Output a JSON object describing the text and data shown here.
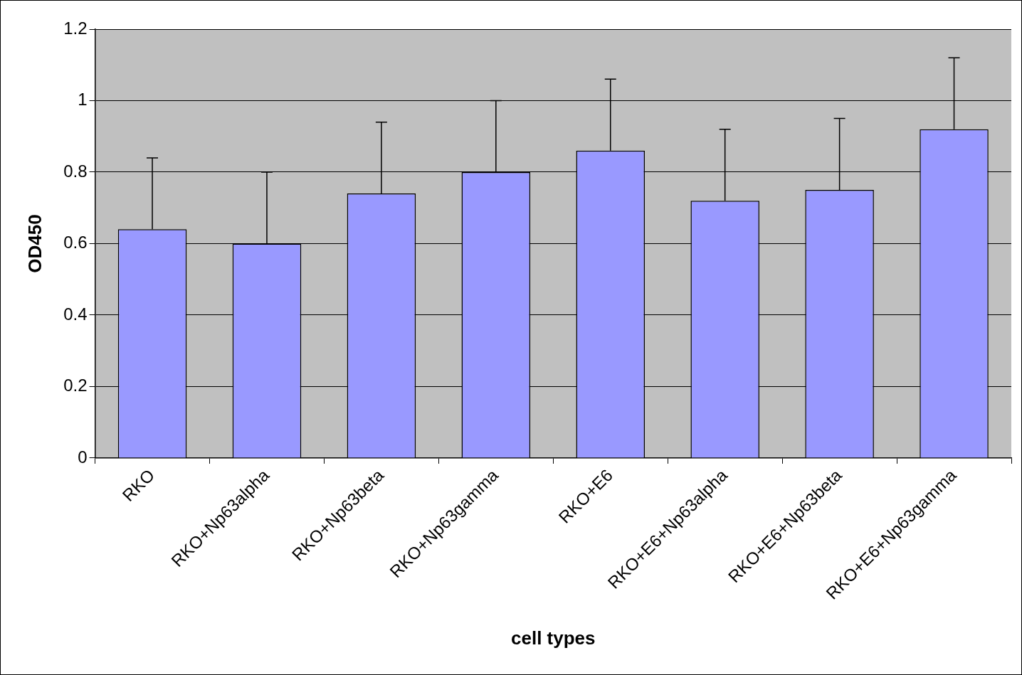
{
  "chart_data": {
    "type": "bar",
    "xlabel": "cell types",
    "ylabel": "OD450",
    "categories": [
      "RKO",
      "RKO+Np63alpha",
      "RKO+Np63beta",
      "RKO+Np63gamma",
      "RKO+E6",
      "RKO+E6+Np63alpha",
      "RKO+E6+Np63beta",
      "RKO+E6+Np63gamma"
    ],
    "values": [
      0.64,
      0.6,
      0.74,
      0.8,
      0.86,
      0.72,
      0.75,
      0.92
    ],
    "errors": [
      [
        0.64,
        0.84
      ],
      [
        0.6,
        0.8
      ],
      [
        0.74,
        0.94
      ],
      [
        0.8,
        1.0
      ],
      [
        0.86,
        1.06
      ],
      [
        0.72,
        0.92
      ],
      [
        0.75,
        0.95
      ],
      [
        0.92,
        1.12
      ]
    ],
    "color": "#9999ff",
    "ylim": [
      0,
      1.2
    ],
    "yticks": [
      0,
      0.2,
      0.4,
      0.6,
      0.8,
      1,
      1.2
    ],
    "grid": "y",
    "legend": false
  }
}
